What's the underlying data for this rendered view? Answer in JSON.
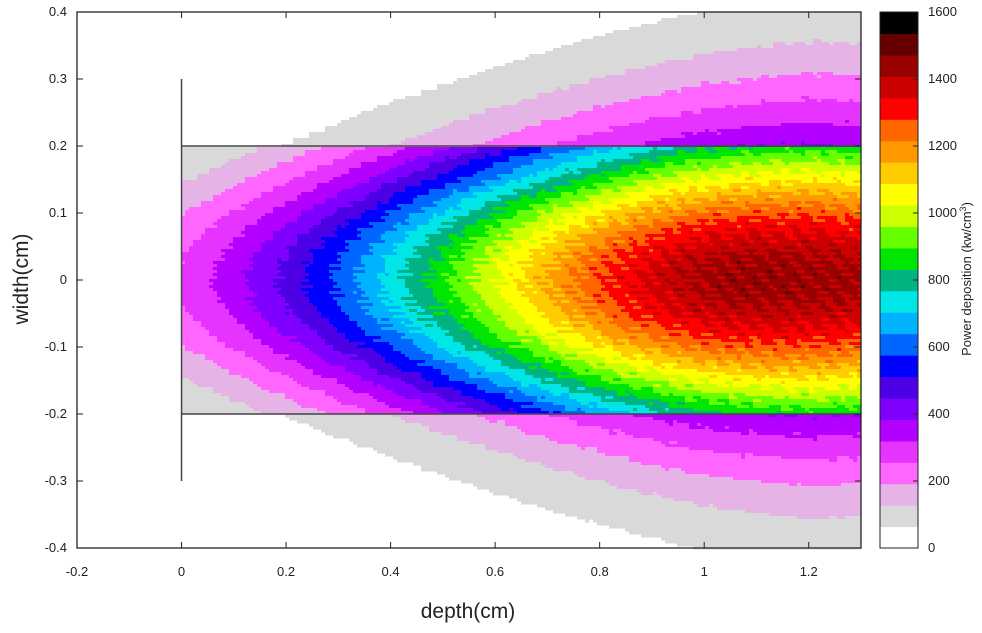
{
  "chart_data": {
    "type": "heatmap",
    "xlabel": "depth(cm)",
    "ylabel": "width(cm)",
    "colorbar_label": "Power deposition (kw/cm",
    "colorbar_label_sup": "3",
    "colorbar_label_end": ")",
    "xlim": [
      -0.2,
      1.3
    ],
    "ylim": [
      -0.4,
      0.4
    ],
    "x_ticks": [
      -0.2,
      0,
      0.2,
      0.4,
      0.6,
      0.8,
      1,
      1.2
    ],
    "x_tick_labels": [
      "-0.2",
      "0",
      "0.2",
      "0.4",
      "0.6",
      "0.8",
      "1",
      "1.2"
    ],
    "y_ticks": [
      0.4,
      0.3,
      0.2,
      0.1,
      0,
      -0.1,
      -0.2,
      -0.3,
      -0.4
    ],
    "y_tick_labels": [
      "0.4",
      "0.3",
      "0.2",
      "0.1",
      "0",
      "-0.1",
      "-0.2",
      "-0.3",
      "-0.4"
    ],
    "colorbar_ticks": [
      0,
      200,
      400,
      600,
      800,
      1000,
      1200,
      1400,
      1600
    ],
    "colorbar_tick_labels": [
      "0",
      "200",
      "400",
      "600",
      "800",
      "1000",
      "1200",
      "1400",
      "1600"
    ],
    "colorbar_range": [
      0,
      1600
    ],
    "colorbar_colors": [
      "#ffffff",
      "#d9d9d9",
      "#e6b3e6",
      "#ff66ff",
      "#e633ff",
      "#b300ff",
      "#8000ff",
      "#4d00e6",
      "#0000ff",
      "#0066ff",
      "#00b3ff",
      "#00e6e6",
      "#00b380",
      "#00e600",
      "#66ff00",
      "#ccff00",
      "#ffff00",
      "#ffcc00",
      "#ff9900",
      "#ff6600",
      "#ff0000",
      "#cc0000",
      "#990000",
      "#660000",
      "#000000"
    ],
    "peak": {
      "depth": 1.1,
      "width": 0,
      "value": 1500
    },
    "boundary_lines": [
      {
        "x": [
          0,
          0
        ],
        "y": [
          -0.3,
          0.3
        ]
      },
      {
        "x": [
          0,
          1.3
        ],
        "y": [
          0.2,
          0.2
        ]
      },
      {
        "x": [
          0,
          1.3
        ],
        "y": [
          -0.2,
          -0.2
        ]
      }
    ]
  }
}
